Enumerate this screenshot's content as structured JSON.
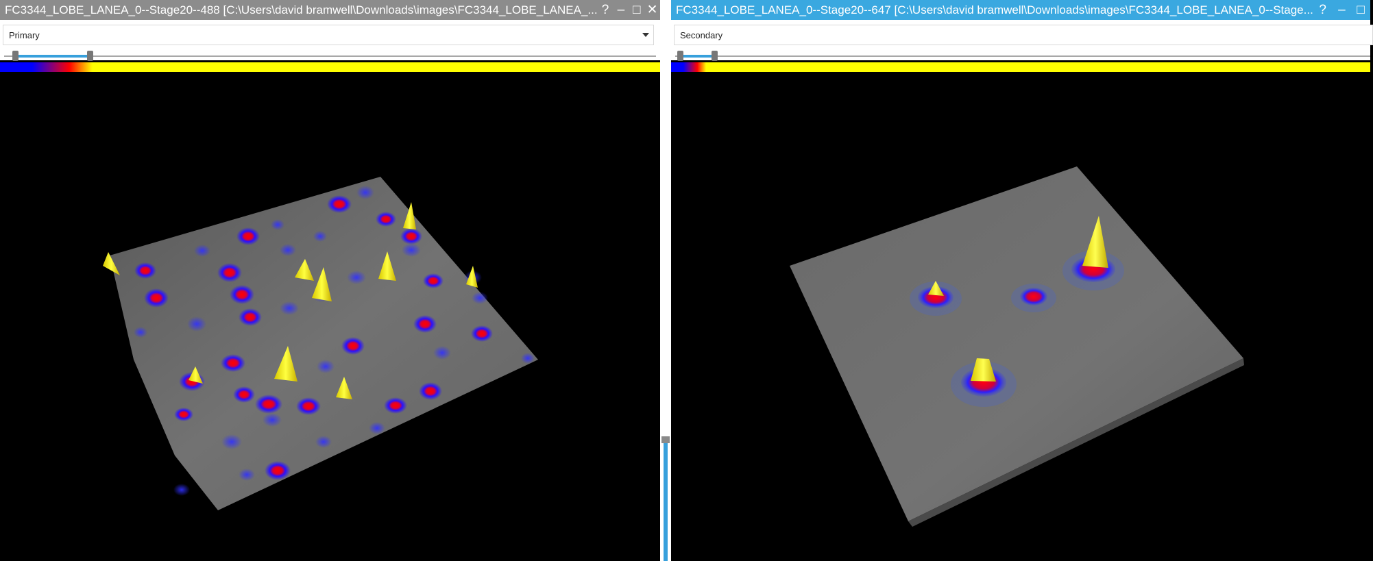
{
  "left_window": {
    "title": "FC3344_LOBE_LANEA_0--Stage20--488 [C:\\Users\\david bramwell\\Downloads\\images\\FC3344_LOBE_LANEA_...",
    "buttons": {
      "help": "?",
      "minimize": "–",
      "maximize": "□",
      "close": "✕"
    },
    "dropdown_value": "Primary",
    "range_slider": {
      "low": 0.0,
      "high": 0.14
    }
  },
  "right_window": {
    "title": "FC3344_LOBE_LANEA_0--Stage20--647 [C:\\Users\\david bramwell\\Downloads\\images\\FC3344_LOBE_LANEA_0--Stage...",
    "buttons": {
      "help": "?",
      "minimize": "–",
      "maximize": "□"
    },
    "dropdown_value": "Secondary",
    "range_slider": {
      "low": 0.0,
      "high": 0.05
    }
  },
  "colors": {
    "left_titlebar": "#8c8c8c",
    "right_titlebar": "#3aa8e0",
    "accent": "#37a0dc",
    "surface": "#6e6e6e",
    "colormap": [
      "#0000ff",
      "#ff0000",
      "#ffff00"
    ]
  },
  "icons": [
    "help-icon",
    "minimize-icon",
    "maximize-icon",
    "close-icon",
    "chevron-down-icon"
  ]
}
